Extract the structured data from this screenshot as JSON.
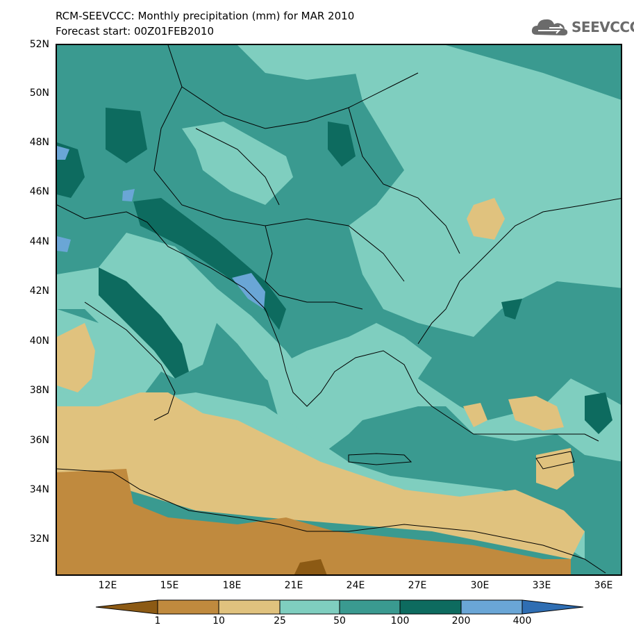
{
  "header": {
    "title": "RCM-SEEVCCC: Monthly precipitation (mm) for MAR 2010",
    "subtitle": "Forecast start: 00Z01FEB2010",
    "logo_text": "SEEVCCC"
  },
  "map": {
    "lat_labels": [
      "52N",
      "50N",
      "48N",
      "46N",
      "44N",
      "42N",
      "40N",
      "38N",
      "36N",
      "34N",
      "32N"
    ],
    "lon_labels": [
      "12E",
      "15E",
      "18E",
      "21E",
      "24E",
      "27E",
      "30E",
      "33E",
      "36E"
    ]
  },
  "colorbar": {
    "bounds": [
      "1",
      "10",
      "25",
      "50",
      "100",
      "200",
      "400"
    ],
    "colors": [
      "#8c5a14",
      "#c08a3e",
      "#e0c27e",
      "#7fcebf",
      "#3a9a90",
      "#0d6b5f",
      "#6aa6d6",
      "#2f6eb3"
    ]
  }
}
